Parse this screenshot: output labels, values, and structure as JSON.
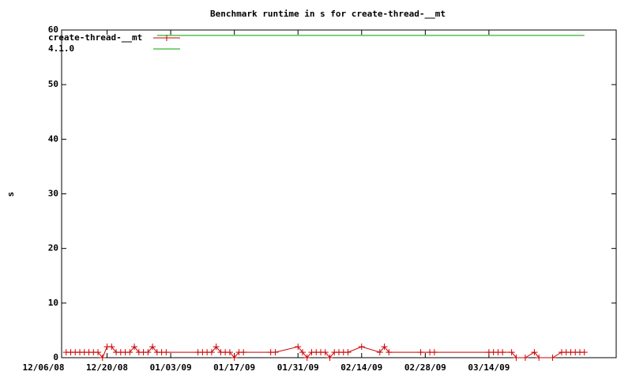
{
  "chart_data": {
    "type": "line",
    "title": "Benchmark runtime in s for create-thread-__mt",
    "y_label": "s",
    "x": [
      "12/11/08",
      "12/12/08",
      "12/13/08",
      "12/14/08",
      "12/15/08",
      "12/16/08",
      "12/17/08",
      "12/18/08",
      "12/19/08",
      "12/20/08",
      "12/21/08",
      "12/22/08",
      "12/23/08",
      "12/24/08",
      "12/25/08",
      "12/26/08",
      "12/27/08",
      "12/28/08",
      "12/29/08",
      "12/30/08",
      "12/31/08",
      "01/01/09",
      "01/02/09",
      "01/09/09",
      "01/10/09",
      "01/11/09",
      "01/12/09",
      "01/13/09",
      "01/14/09",
      "01/15/09",
      "01/16/09",
      "01/17/09",
      "01/18/09",
      "01/19/09",
      "01/25/09",
      "01/26/09",
      "01/31/09",
      "02/01/09",
      "02/02/09",
      "02/03/09",
      "02/04/09",
      "02/05/09",
      "02/06/09",
      "02/07/09",
      "02/08/09",
      "02/09/09",
      "02/10/09",
      "02/11/09",
      "02/14/09",
      "02/18/09",
      "02/19/09",
      "02/20/09",
      "02/27/09",
      "03/01/09",
      "03/02/09",
      "03/14/09",
      "03/15/09",
      "03/16/09",
      "03/17/09",
      "03/19/09",
      "03/20/09",
      "03/22/09",
      "03/24/09",
      "03/25/09",
      "03/28/09",
      "03/30/09",
      "03/31/09",
      "04/01/09",
      "04/02/09",
      "04/03/09",
      "04/04/09"
    ],
    "series": [
      {
        "name": "create-thread-__mt",
        "color": "#cc0000",
        "markers": true,
        "values": [
          1,
          1,
          1,
          1,
          1,
          1,
          1,
          1,
          0,
          2,
          2,
          1,
          1,
          1,
          1,
          2,
          1,
          1,
          1,
          2,
          1,
          1,
          1,
          1,
          1,
          1,
          1,
          2,
          1,
          1,
          1,
          0,
          1,
          1,
          1,
          1,
          2,
          1,
          0,
          1,
          1,
          1,
          1,
          0,
          1,
          1,
          1,
          1,
          2,
          1,
          2,
          1,
          1,
          1,
          1,
          1,
          1,
          1,
          1,
          1,
          0,
          0,
          1,
          0,
          0,
          1,
          1,
          1,
          1,
          1,
          1
        ]
      },
      {
        "name": "4.1.0",
        "color": "#00a000",
        "markers": false,
        "x": [
          "12/31/08",
          "04/04/09"
        ],
        "values": [
          59,
          59
        ]
      }
    ],
    "xlim": [
      "12/10/08",
      "04/11/09"
    ],
    "xticks": [
      "12/06/08",
      "12/20/08",
      "01/03/09",
      "01/17/09",
      "01/31/09",
      "02/14/09",
      "02/28/09",
      "03/14/09"
    ],
    "ylim": [
      0,
      60
    ],
    "yticks": [
      0,
      10,
      20,
      30,
      40,
      50,
      60
    ],
    "legend": "top-left"
  }
}
